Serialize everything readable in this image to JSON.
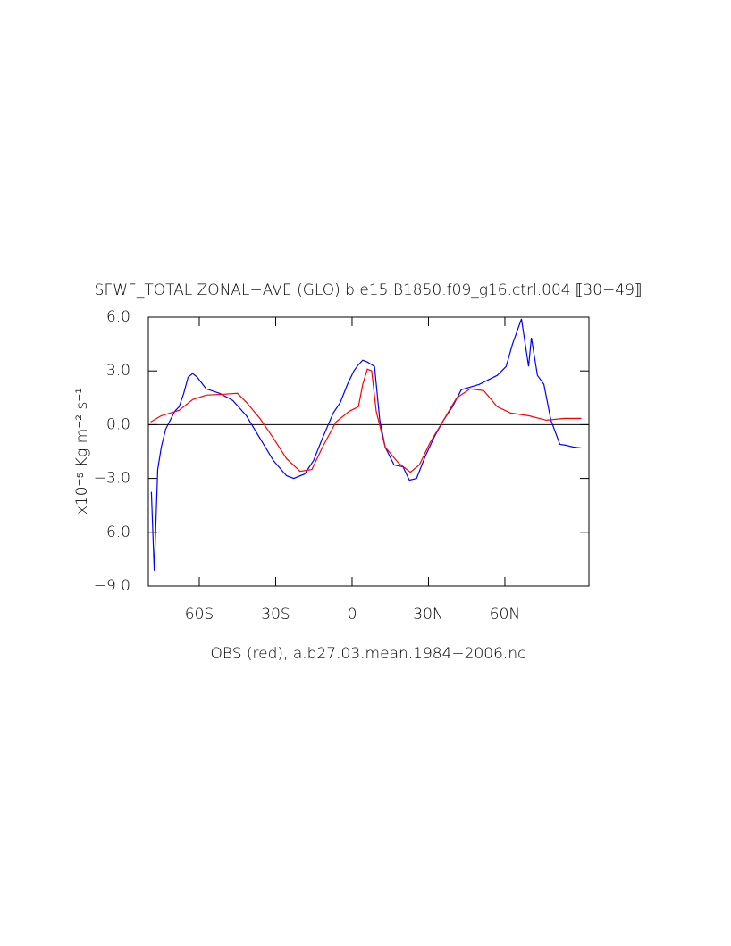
{
  "chart_data": {
    "type": "line",
    "title": "SFWF_TOTAL ZONAL−AVE (GLO) b.e15.B1850.f09_g16.ctrl.004 ⟦30−49⟧",
    "x_label": "OBS (red), a.b27.03.mean.1984−2006.nc",
    "y_label": "x10⁻⁵ Kg m⁻² s⁻¹",
    "xlim": [
      -80,
      93
    ],
    "ylim": [
      -9,
      6
    ],
    "xticks": [
      {
        "value": -60,
        "label": "60S"
      },
      {
        "value": -30,
        "label": "30S"
      },
      0,
      {
        "value": 30,
        "label": "30N"
      },
      {
        "value": 60,
        "label": "60N"
      }
    ],
    "yticks": [
      {
        "value": -9,
        "label": "−9.0"
      },
      {
        "value": -6,
        "label": "−6.0"
      },
      {
        "value": -3,
        "label": "−3.0"
      },
      {
        "value": 0,
        "label": "0.0"
      },
      {
        "value": 3,
        "label": "3.0"
      },
      {
        "value": 6,
        "label": "6.0"
      }
    ],
    "zero_line": true,
    "series": [
      {
        "color": "#0000ff",
        "x": [
          -78.8,
          -77.7,
          -76.3,
          -74.9,
          -73.2,
          -71.4,
          -69.6,
          -67.9,
          -66.1,
          -64.4,
          -62.6,
          -60.8,
          -57.3,
          -52.0,
          -46.8,
          -41.5,
          -36.2,
          -30.9,
          -25.7,
          -22.9,
          -18.6,
          -15.1,
          -11.6,
          -7.4,
          -4.6,
          -1.8,
          0.7,
          2.5,
          4.2,
          6.0,
          8.8,
          10.9,
          13.0,
          16.5,
          20.0,
          22.5,
          25.3,
          28.8,
          32.4,
          35.9,
          39.4,
          42.9,
          46.4,
          49.9,
          53.5,
          57.0,
          60.5,
          63.0,
          66.5,
          69.3,
          70.4,
          72.8,
          75.3,
          78.1,
          81.6,
          84.1,
          86.9,
          90.0
        ],
        "values": [
          -3.75,
          -8.15,
          -2.5,
          -1.25,
          -0.25,
          0.25,
          0.75,
          1.0,
          1.75,
          2.65,
          2.85,
          2.65,
          2.0,
          1.75,
          1.35,
          0.5,
          -0.75,
          -2.0,
          -2.85,
          -3.0,
          -2.75,
          -2.0,
          -0.75,
          0.65,
          1.25,
          2.25,
          3.0,
          3.35,
          3.6,
          3.5,
          3.25,
          0.25,
          -1.25,
          -2.25,
          -2.35,
          -3.1,
          -3.0,
          -1.75,
          -0.65,
          0.25,
          1.0,
          1.95,
          2.1,
          2.25,
          2.5,
          2.75,
          3.25,
          4.5,
          5.9,
          3.25,
          4.85,
          2.75,
          2.25,
          0.25,
          -1.1,
          -1.15,
          -1.25,
          -1.3
        ]
      },
      {
        "color": "#ff0000",
        "x": [
          -79.1,
          -74.9,
          -67.9,
          -62.6,
          -57.3,
          -50.3,
          -45.0,
          -41.5,
          -36.2,
          -30.9,
          -25.7,
          -20.4,
          -15.8,
          -11.6,
          -6.3,
          -1.1,
          2.5,
          4.2,
          6.0,
          7.7,
          9.5,
          13.0,
          18.3,
          22.9,
          26.4,
          30.6,
          35.9,
          41.1,
          46.4,
          51.7,
          57.0,
          62.3,
          69.3,
          76.3,
          83.4,
          90.0
        ],
        "values": [
          0.15,
          0.5,
          0.8,
          1.4,
          1.65,
          1.7,
          1.75,
          1.25,
          0.35,
          -0.75,
          -1.9,
          -2.6,
          -2.5,
          -1.25,
          0.15,
          0.75,
          1.0,
          2.25,
          3.1,
          3.0,
          0.75,
          -1.25,
          -2.15,
          -2.65,
          -2.25,
          -1.0,
          0.25,
          1.5,
          2.0,
          1.9,
          1.0,
          0.65,
          0.5,
          0.25,
          0.35,
          0.35
        ]
      }
    ]
  }
}
